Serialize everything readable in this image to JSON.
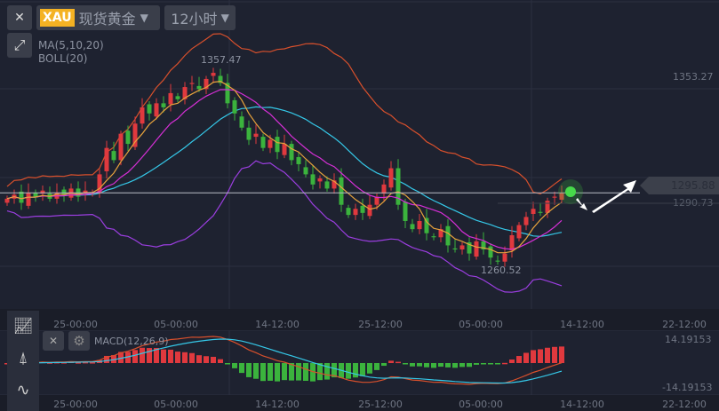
{
  "header": {
    "close_label": "✕",
    "symbol_badge": "XAU",
    "symbol_name": "现货黄金",
    "period": "12小时",
    "expand_label": "⤢"
  },
  "indicators": {
    "ma": "MA(5,10,20)",
    "boll": "BOLL(20)",
    "macd": "MACD(12,26,9)"
  },
  "price_axis": {
    "top": "1353.27",
    "current": "1295.88",
    "prev": "1290.73",
    "high_label": "1357.47",
    "low_label": "1260.52"
  },
  "macd_axis": {
    "top": "14.19153",
    "bottom": "-14.19153"
  },
  "time_labels": [
    "25-00:00",
    "05-00:00",
    "14-12:00",
    "25-12:00",
    "05-00:00",
    "14-12:00",
    "22-12:00"
  ],
  "colors": {
    "up": "#e0393e",
    "down": "#3bb33d",
    "ma5": "#e8a33c",
    "ma10": "#d62fd6",
    "ma20": "#35c8e8",
    "boll": "#d8502c",
    "boll_lower": "#9b3ee0"
  },
  "chart_data": {
    "type": "candlestick",
    "closes": [
      1293,
      1295,
      1291,
      1296,
      1294,
      1297,
      1293,
      1296,
      1295,
      1298,
      1294,
      1297,
      1296,
      1305,
      1318,
      1312,
      1325,
      1320,
      1330,
      1338,
      1335,
      1340,
      1338,
      1345,
      1342,
      1348,
      1350,
      1347,
      1352,
      1355,
      1350,
      1340,
      1335,
      1328,
      1322,
      1325,
      1318,
      1322,
      1316,
      1320,
      1312,
      1310,
      1305,
      1300,
      1303,
      1298,
      1302,
      1290,
      1285,
      1288,
      1286,
      1290,
      1294,
      1300,
      1308,
      1290,
      1282,
      1278,
      1282,
      1276,
      1274,
      1278,
      1270,
      1268,
      1270,
      1266,
      1272,
      1268,
      1264,
      1262,
      1266,
      1275,
      1280,
      1284,
      1288,
      1286,
      1292,
      1294,
      1296
    ],
    "high": 1357.47,
    "low": 1260.52,
    "last": 1295.88
  }
}
